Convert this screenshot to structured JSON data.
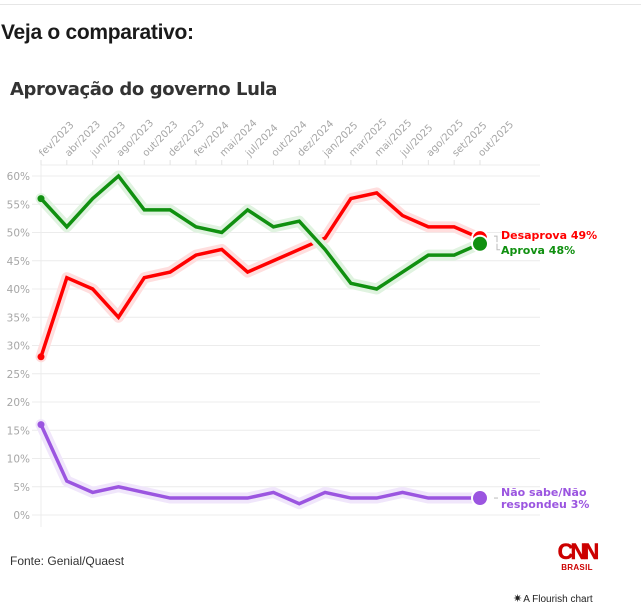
{
  "page": {
    "heading": "Veja o comparativo:"
  },
  "chart": {
    "title": "Aprovação do governo Lula",
    "source": "Fonte: Genial/Quaest",
    "logo": {
      "mark": "CNN",
      "sub": "BRASIL",
      "color": "#cc0000"
    },
    "credit": {
      "icon": "flourish-star-icon",
      "text": "A Flourish chart"
    }
  },
  "chart_data": {
    "type": "line",
    "title": "Aprovação do governo Lula",
    "xlabel": "",
    "ylabel": "",
    "categories": [
      "fev/2023",
      "abr/2023",
      "jun/2023",
      "ago/2023",
      "out/2023",
      "dez/2023",
      "fev/2024",
      "mai/2024",
      "jul/2024",
      "out/2024",
      "dez/2024",
      "jan/2025",
      "mar/2025",
      "mai/2025",
      "jul/2025",
      "ago/2025",
      "set/2025",
      "out/2025"
    ],
    "y_ticks": [
      "0%",
      "5%",
      "10%",
      "15%",
      "20%",
      "25%",
      "30%",
      "35%",
      "40%",
      "45%",
      "50%",
      "55%",
      "60%"
    ],
    "ylim": [
      0,
      60
    ],
    "grid": true,
    "legend": "end-labels-right",
    "series": [
      {
        "name": "Desaprova",
        "end_label": "Desaprova 49%",
        "color": "#ff0000",
        "halo": "#ffdede",
        "values": [
          28,
          42,
          40,
          35,
          42,
          43,
          46,
          47,
          43,
          45,
          47,
          49,
          56,
          57,
          53,
          51,
          51,
          49
        ]
      },
      {
        "name": "Aprova",
        "end_label": "Aprova 48%",
        "color": "#109010",
        "halo": "#e0f3e0",
        "values": [
          56,
          51,
          56,
          60,
          54,
          54,
          51,
          50,
          54,
          51,
          52,
          47,
          41,
          40,
          43,
          46,
          46,
          48
        ]
      },
      {
        "name": "Não sabe/Não respondeu",
        "end_label_lines": [
          "Não sabe/Não",
          "respondeu 3%"
        ],
        "color": "#9b55e0",
        "halo": "#f0e6fb",
        "values": [
          16,
          6,
          4,
          5,
          4,
          3,
          3,
          3,
          3,
          4,
          2,
          4,
          3,
          3,
          4,
          3,
          3,
          3
        ]
      }
    ]
  }
}
